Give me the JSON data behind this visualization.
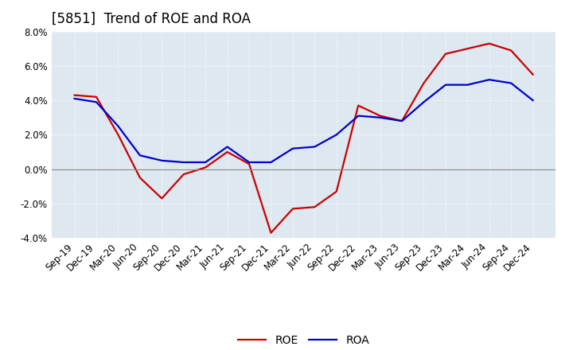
{
  "title": "[5851]  Trend of ROE and ROA",
  "x_labels": [
    "Sep-19",
    "Dec-19",
    "Mar-20",
    "Jun-20",
    "Sep-20",
    "Dec-20",
    "Mar-21",
    "Jun-21",
    "Sep-21",
    "Dec-21",
    "Mar-22",
    "Jun-22",
    "Sep-22",
    "Dec-22",
    "Mar-23",
    "Jun-23",
    "Sep-23",
    "Dec-23",
    "Mar-24",
    "Jun-24",
    "Sep-24",
    "Dec-24"
  ],
  "roe": [
    4.3,
    4.2,
    2.0,
    -0.5,
    -1.7,
    -0.3,
    0.1,
    1.0,
    0.3,
    -3.7,
    -2.3,
    -2.2,
    -1.3,
    3.7,
    3.1,
    2.8,
    5.0,
    6.7,
    7.0,
    7.3,
    6.9,
    5.5
  ],
  "roa": [
    4.1,
    3.9,
    2.5,
    0.8,
    0.5,
    0.4,
    0.4,
    1.3,
    0.4,
    0.4,
    1.2,
    1.3,
    2.0,
    3.1,
    3.0,
    2.8,
    3.9,
    4.9,
    4.9,
    5.2,
    5.0,
    4.0
  ],
  "roe_color": "#cc0000",
  "roa_color": "#0000cc",
  "ylim": [
    -4.0,
    8.0
  ],
  "yticks": [
    -4.0,
    -2.0,
    0.0,
    2.0,
    4.0,
    6.0,
    8.0
  ],
  "background_color": "#ffffff",
  "plot_bg_color": "#dde8f0",
  "grid_color": "#ffffff",
  "zero_line_color": "#888888",
  "title_fontsize": 12,
  "legend_fontsize": 10,
  "tick_fontsize": 8.5
}
